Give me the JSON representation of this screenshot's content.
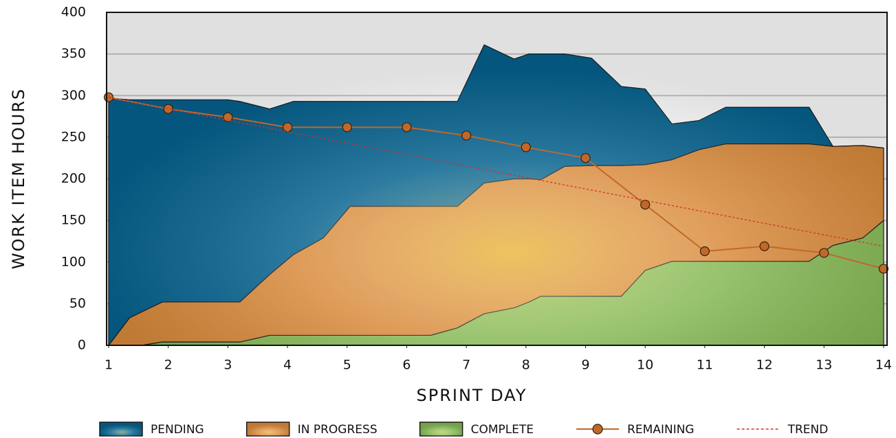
{
  "chart_data": {
    "type": "area",
    "x_label": "SPRINT DAY",
    "y_label": "WORK ITEM HOURS",
    "x": [
      1,
      1.35,
      1.55,
      1.9,
      3,
      3.2,
      3.7,
      4.1,
      4.6,
      5.05,
      6.4,
      6.85,
      7.3,
      7.8,
      8.05,
      8.25,
      8.65,
      9.1,
      9.6,
      10,
      10.45,
      10.9,
      11.35,
      12.75,
      13.15,
      13.65,
      14
    ],
    "xlim": [
      1,
      14
    ],
    "xticks": [
      1,
      2,
      3,
      4,
      5,
      6,
      7,
      8,
      9,
      10,
      11,
      12,
      13,
      14
    ],
    "ylim": [
      0,
      400
    ],
    "yticks": [
      0,
      50,
      100,
      150,
      200,
      250,
      300,
      350,
      400
    ],
    "grid": true,
    "series": [
      {
        "name": "PENDING",
        "type": "area",
        "color": "#06628f",
        "values": [
          297,
          262,
          255,
          243,
          243,
          241,
          199,
          184,
          164,
          126,
          126,
          126,
          166,
          144,
          150,
          151,
          135,
          129,
          95,
          91,
          43,
          35,
          44,
          44,
          0,
          0,
          0
        ]
      },
      {
        "name": "IN PROGRESS",
        "type": "area",
        "color": "#d98a3c",
        "values": [
          0,
          33,
          40,
          48,
          48,
          48,
          73,
          97,
          117,
          155,
          155,
          146,
          157,
          155,
          148,
          140,
          156,
          157,
          157,
          127,
          122,
          134,
          141,
          141,
          119,
          111,
          87
        ]
      },
      {
        "name": "COMPLETE",
        "type": "area",
        "color": "#86b855",
        "values": [
          0,
          0,
          0,
          4,
          4,
          4,
          12,
          12,
          12,
          12,
          12,
          21,
          38,
          45,
          52,
          59,
          59,
          59,
          59,
          90,
          101,
          101,
          101,
          101,
          120,
          129,
          150
        ]
      },
      {
        "name": "REMAINING",
        "type": "line",
        "color": "#c0682a",
        "markers": true,
        "x": [
          1,
          2,
          3,
          4,
          5,
          6,
          7,
          8,
          9,
          10,
          11,
          12,
          13,
          14
        ],
        "values": [
          298,
          284,
          274,
          262,
          262,
          262,
          252,
          238,
          225,
          169,
          113,
          119,
          111,
          92
        ]
      },
      {
        "name": "TREND",
        "type": "line",
        "color": "#d0302a",
        "dashed": true,
        "x": [
          1,
          14
        ],
        "values": [
          298,
          119
        ]
      }
    ]
  }
}
